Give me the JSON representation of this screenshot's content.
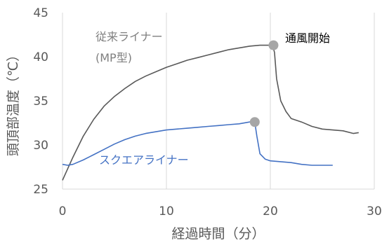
{
  "chart_data": {
    "type": "line",
    "xlabel": "経過時間（分）",
    "ylabel": "頭頂部温度（℃）",
    "xlim": [
      0,
      30
    ],
    "ylim": [
      25,
      45
    ],
    "xticks": [
      "0",
      "10",
      "20",
      "30"
    ],
    "yticks": [
      "25",
      "30",
      "35",
      "40",
      "45"
    ],
    "grid": "vertical",
    "colors": {
      "series1": "#595959",
      "series2": "#4472C4",
      "marker": "#A6A6A6",
      "text_gray": "#7F7F7F",
      "axis": "#D9D9D9"
    },
    "series": [
      {
        "name": "従来ライナー (MP型)",
        "label_lines": [
          "従来ライナー",
          "(MP型)"
        ],
        "x": [
          0,
          1,
          2,
          3,
          4,
          5,
          6,
          7,
          8,
          9,
          10,
          11,
          12,
          13,
          14,
          15,
          16,
          17,
          18,
          19,
          20.2,
          20.4,
          20.6,
          21,
          21.5,
          22,
          23,
          24,
          25,
          26,
          27,
          28,
          28.5
        ],
        "y": [
          26.0,
          28.6,
          31.0,
          32.9,
          34.4,
          35.5,
          36.4,
          37.2,
          37.8,
          38.3,
          38.8,
          39.2,
          39.6,
          39.9,
          40.2,
          40.5,
          40.8,
          41.0,
          41.2,
          41.3,
          41.3,
          40.5,
          37.5,
          35.0,
          33.8,
          33.0,
          32.6,
          32.1,
          31.8,
          31.7,
          31.6,
          31.3,
          31.4
        ]
      },
      {
        "name": "スクエアライナー",
        "label_lines": [
          "スクエアライナー"
        ],
        "x": [
          0,
          0.5,
          1,
          2,
          3,
          4,
          5,
          6,
          7,
          8,
          9,
          10,
          11,
          12,
          13,
          14,
          15,
          16,
          17,
          18,
          18.5,
          18.7,
          19,
          19.5,
          20,
          21,
          22,
          23,
          24,
          25,
          26
        ],
        "y": [
          27.8,
          27.7,
          27.8,
          28.3,
          28.9,
          29.5,
          30.1,
          30.6,
          31.0,
          31.3,
          31.5,
          31.7,
          31.8,
          31.9,
          32.0,
          32.1,
          32.2,
          32.3,
          32.4,
          32.6,
          32.6,
          31.0,
          29.0,
          28.4,
          28.2,
          28.1,
          28.0,
          27.8,
          27.7,
          27.7,
          27.7
        ]
      }
    ],
    "annotations": [
      {
        "text": "通風開始",
        "x": 20.3,
        "y": 41.3
      },
      {
        "text": "",
        "x": 18.5,
        "y": 32.6
      }
    ]
  }
}
